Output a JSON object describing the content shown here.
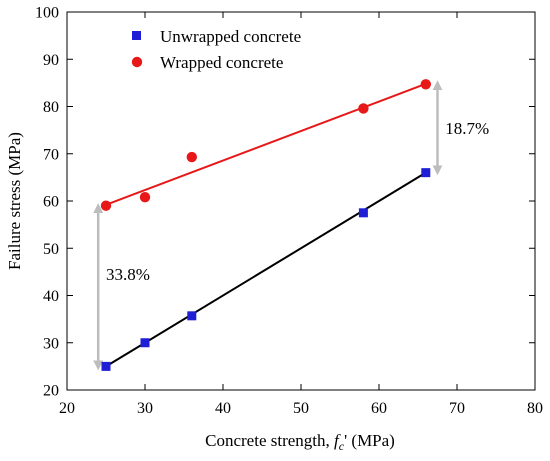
{
  "chart_data": {
    "type": "scatter",
    "xlabel": "Concrete strength, ",
    "xlabel_symbol": "f",
    "xlabel_subscript": "c",
    "xlabel_suffix": "' (MPa)",
    "ylabel": "Failure stress (MPa)",
    "xlim": [
      20,
      80
    ],
    "ylim": [
      20,
      100
    ],
    "xticks": [
      20,
      30,
      40,
      50,
      60,
      70,
      80
    ],
    "yticks": [
      20,
      30,
      40,
      50,
      60,
      70,
      80,
      90,
      100
    ],
    "grid": false,
    "legend_position": "top-left",
    "series": [
      {
        "name": "Unwrapped concrete",
        "marker": "square",
        "color": "#1f1fd6",
        "line_color": "#000000",
        "x": [
          25,
          30,
          36,
          58,
          66
        ],
        "y": [
          25,
          30,
          35.7,
          57.5,
          66
        ],
        "fit": {
          "x": [
            25,
            66
          ],
          "y": [
            25,
            66
          ]
        }
      },
      {
        "name": "Wrapped concrete",
        "marker": "circle",
        "color": "#e81818",
        "line_color": "#e81818",
        "x": [
          25,
          30,
          36,
          58,
          66
        ],
        "y": [
          59,
          60.8,
          69.3,
          79.6,
          84.7
        ],
        "fit": {
          "x": [
            25,
            66
          ],
          "y": [
            59.2,
            84.8
          ]
        }
      }
    ],
    "annotations": [
      {
        "text": "18.7%",
        "x": 67.5,
        "y1": 66.5,
        "y2": 84.5,
        "label_x": 68.5,
        "label_y": 75.5
      },
      {
        "text": "33.8%",
        "x": 24,
        "y1": 25.2,
        "y2": 58.5,
        "label_x": 25,
        "label_y": 44.5
      }
    ],
    "arrow_color": "#bdbdbd"
  }
}
